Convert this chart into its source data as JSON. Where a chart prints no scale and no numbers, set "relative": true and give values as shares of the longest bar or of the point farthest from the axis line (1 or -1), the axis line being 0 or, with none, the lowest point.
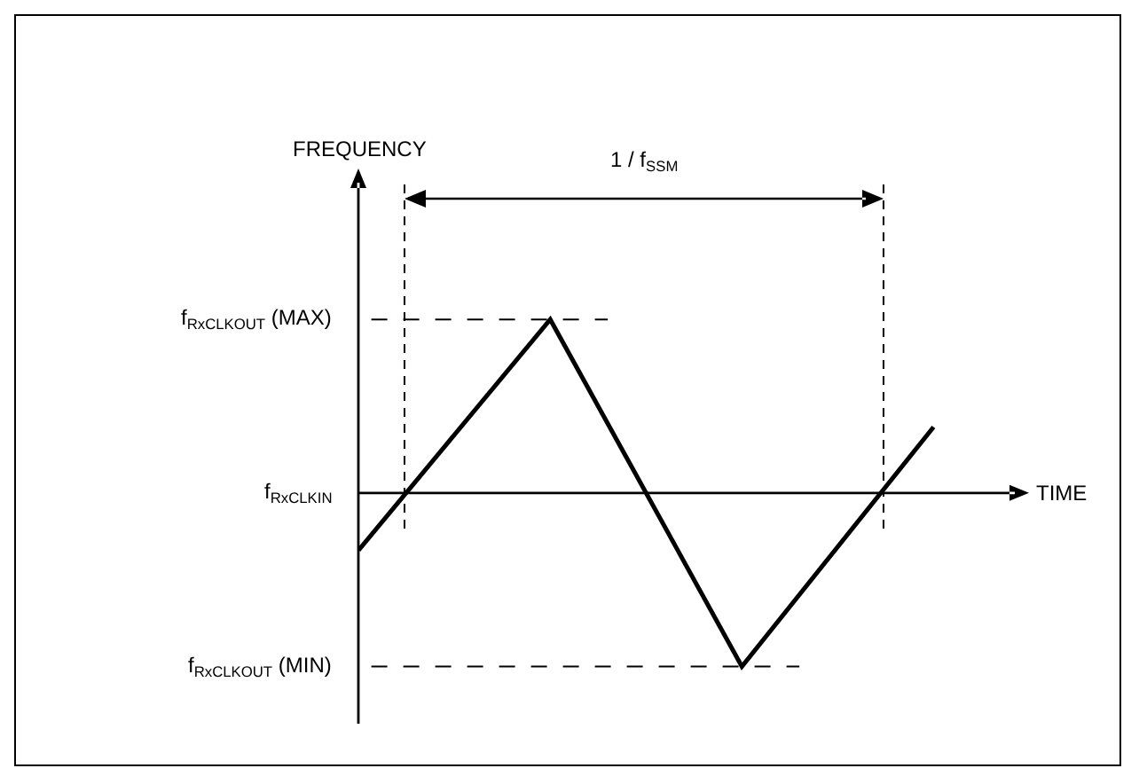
{
  "chart_data": {
    "type": "line",
    "relative": true,
    "xlabel": "TIME",
    "categories": [
      null,
      null,
      null,
      null
    ],
    "series": [
      {
        "color": "#000000",
        "values": [
          -0.33,
          1,
          -1,
          0.38
        ]
      }
    ],
    "ref_lines": [
      {
        "axis": "y",
        "value": 1,
        "label": "f$_{RxCLKOUT}$ (MAX)",
        "line_style": "dashed"
      },
      {
        "axis": "y",
        "value": 0,
        "label": "f$_{RxCLKIN}$"
      },
      {
        "axis": "y",
        "value": -1,
        "label": "f$_{RxCLKOUT}$ (MIN)",
        "line_style": "dashed"
      }
    ],
    "annotations": [
      "FREQUENCY",
      "1 / f$_{SSM}$"
    ]
  }
}
